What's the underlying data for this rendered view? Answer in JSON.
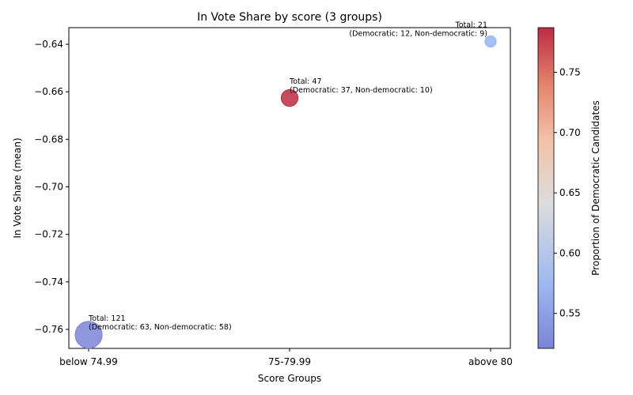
{
  "chart_data": {
    "type": "scatter",
    "title": "In Vote Share by score (3 groups)",
    "xlabel": "Score Groups",
    "ylabel": "In Vote Share (mean)",
    "categories": [
      "below 74.99",
      "75-79.99",
      "above 80"
    ],
    "ylim": [
      -0.768,
      -0.633
    ],
    "yticks": [
      -0.76,
      -0.74,
      -0.72,
      -0.7,
      -0.68,
      -0.66,
      -0.64
    ],
    "ytick_labels": [
      "−0.76",
      "−0.74",
      "−0.72",
      "−0.70",
      "−0.68",
      "−0.66",
      "−0.64"
    ],
    "grid": false,
    "points": [
      {
        "category": "below 74.99",
        "y": -0.7623,
        "total": 121,
        "democratic": 63,
        "non_democratic": 58,
        "proportion": 0.521,
        "color": "#7b84d6",
        "annotation_line1": "Total: 121",
        "annotation_line2": "(Democratic: 63, Non-democratic: 58)"
      },
      {
        "category": "75-79.99",
        "y": -0.6626,
        "total": 47,
        "democratic": 37,
        "non_democratic": 10,
        "proportion": 0.787,
        "color": "#bd2c44",
        "annotation_line1": "Total: 47",
        "annotation_line2": "(Democratic: 37, Non-democratic: 10)"
      },
      {
        "category": "above 80",
        "y": -0.6388,
        "total": 21,
        "democratic": 12,
        "non_democratic": 9,
        "proportion": 0.571,
        "color": "#94b4f2",
        "annotation_line1": "Total: 21",
        "annotation_line2": "(Democratic: 12, Non-democratic: 9)"
      }
    ],
    "colorbar": {
      "label": "Proportion of Democratic Candidates",
      "colormap": "coolwarm",
      "range": [
        0.521,
        0.787
      ],
      "ticks": [
        0.55,
        0.6,
        0.65,
        0.7,
        0.75
      ],
      "tick_labels": [
        "0.55",
        "0.60",
        "0.65",
        "0.70",
        "0.75"
      ]
    }
  }
}
